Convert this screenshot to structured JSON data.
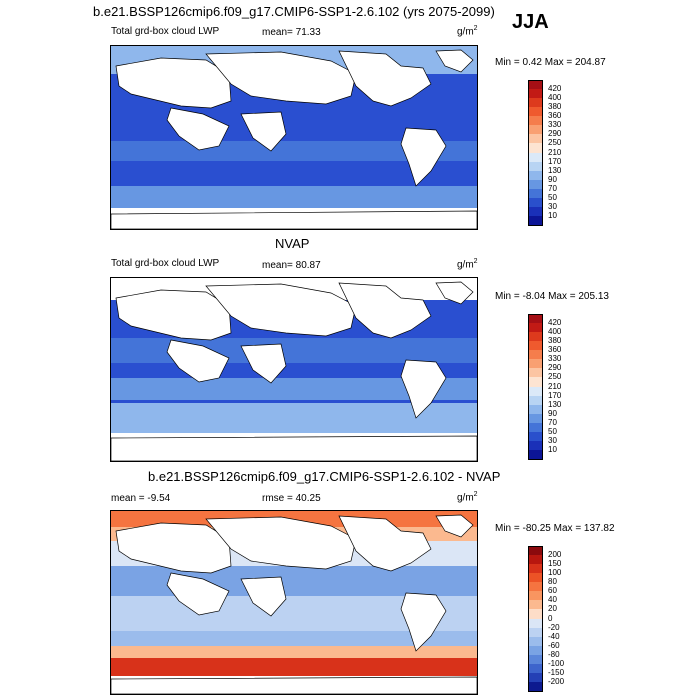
{
  "header": {
    "title": "b.e21.BSSP126cmip6.f09_g17.CMIP6-SSP1-2.6.102 (yrs 2075-2099)",
    "season": "JJA"
  },
  "panels": [
    {
      "panel_title": "",
      "left_label": "Total grd-box cloud LWP",
      "mean_label": "mean=",
      "mean_value": "71.33",
      "units": "g/m",
      "units_exp": "2",
      "minmax": "Min =  0.42 Max = 204.87",
      "colorbar_labels": [
        "420",
        "400",
        "380",
        "360",
        "330",
        "290",
        "250",
        "210",
        "170",
        "130",
        "90",
        "70",
        "50",
        "30",
        "10"
      ],
      "colors": [
        "#a50f15",
        "#c21a15",
        "#dd3a1d",
        "#ef5a2e",
        "#f57d4c",
        "#f9a072",
        "#fcc5a3",
        "#fde4d2",
        "#dbe9f8",
        "#b8d4f3",
        "#8fb7ec",
        "#6797e2",
        "#4474d8",
        "#2a50cc",
        "#1a30b8",
        "#0c1596"
      ]
    },
    {
      "panel_title": "NVAP",
      "left_label": "Total grd-box cloud LWP",
      "mean_label": "mean=",
      "mean_value": "80.87",
      "units": "g/m",
      "units_exp": "2",
      "minmax": "Min =  -8.04 Max = 205.13",
      "colorbar_labels": [
        "420",
        "400",
        "380",
        "360",
        "330",
        "290",
        "250",
        "210",
        "170",
        "130",
        "90",
        "70",
        "50",
        "30",
        "10"
      ],
      "colors": [
        "#a50f15",
        "#c21a15",
        "#dd3a1d",
        "#ef5a2e",
        "#f57d4c",
        "#f9a072",
        "#fcc5a3",
        "#fde4d2",
        "#dbe9f8",
        "#b8d4f3",
        "#8fb7ec",
        "#6797e2",
        "#4474d8",
        "#2a50cc",
        "#1a30b8",
        "#0c1596"
      ]
    },
    {
      "panel_title": "b.e21.BSSP126cmip6.f09_g17.CMIP6-SSP1-2.6.102 - NVAP",
      "left_label": "mean =  -9.54",
      "mean_label": "rmse =",
      "mean_value": "40.25",
      "units": "g/m",
      "units_exp": "2",
      "minmax": "Min = -80.25 Max = 137.82",
      "colorbar_labels": [
        "200",
        "150",
        "100",
        "80",
        "60",
        "40",
        "20",
        "0",
        "-20",
        "-40",
        "-60",
        "-80",
        "-100",
        "-150",
        "-200"
      ],
      "colors": [
        "#8b0a0d",
        "#b8170f",
        "#d8321a",
        "#ec5326",
        "#f57440",
        "#f99560",
        "#fbb98f",
        "#fdddc8",
        "#dbe6f6",
        "#bcd2f2",
        "#9bbcec",
        "#7aa3e4",
        "#5b86da",
        "#3d64cc",
        "#2440b5",
        "#0d1a8f"
      ]
    }
  ]
}
